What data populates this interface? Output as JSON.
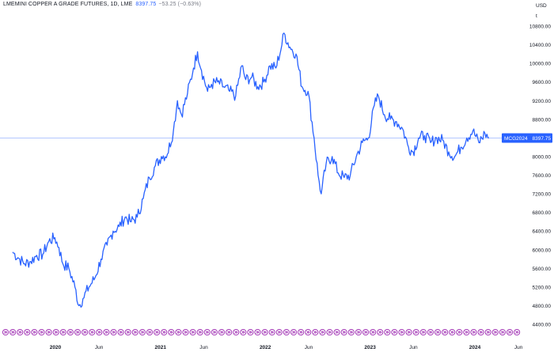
{
  "header": {
    "symbol_line": "LMEMINI COPPER A GRADE FUTURES, 1D, LME",
    "last_price": "8397.75",
    "change": "−53.25 (−0.63%)"
  },
  "axis": {
    "currency": "USD",
    "unit": "t"
  },
  "price_label": {
    "symbol": "MCG2024",
    "value": "8397.75"
  },
  "colors": {
    "line": "#2962ff",
    "label_bg": "#2962ff",
    "event_marker": "#9c27b0",
    "price_line": "#2962ff"
  },
  "chart_data": {
    "type": "line",
    "title": "LMEMINI COPPER A GRADE FUTURES, 1D, LME",
    "ylabel": "USD / t",
    "ylim": [
      4400,
      10800
    ],
    "y_ticks": [
      4400,
      4800,
      5200,
      5600,
      6000,
      6400,
      6800,
      7200,
      7600,
      8000,
      8400,
      8800,
      9200,
      9600,
      10000,
      10400,
      10800
    ],
    "y_tick_labels": [
      "4400.00",
      "4800.00",
      "5200.00",
      "5600.00",
      "6000.00",
      "6400.00",
      "6800.00",
      "7200.00",
      "7600.00",
      "8000.00",
      "8400.00",
      "8800.00",
      "9200.00",
      "9600.00",
      "10000.00",
      "10400.00",
      "10800.00"
    ],
    "x_ticks": [
      {
        "date": "2020-01-01",
        "label": "2020"
      },
      {
        "date": "2020-06-01",
        "label": "Jun"
      },
      {
        "date": "2021-01-01",
        "label": "2021"
      },
      {
        "date": "2021-06-01",
        "label": "Jun"
      },
      {
        "date": "2022-01-01",
        "label": "2022"
      },
      {
        "date": "2022-06-01",
        "label": "Jun"
      },
      {
        "date": "2023-01-01",
        "label": "2023"
      },
      {
        "date": "2023-06-01",
        "label": "Jun"
      },
      {
        "date": "2024-01-01",
        "label": "2024"
      },
      {
        "date": "2024-06-01",
        "label": "Jun"
      }
    ],
    "last_value": 8397.75,
    "series": [
      {
        "x": [
          "2019-08-05",
          "2019-08-26",
          "2019-09-16",
          "2019-10-07",
          "2019-10-28",
          "2019-11-18",
          "2019-12-09",
          "2019-12-30",
          "2020-01-13",
          "2020-01-27",
          "2020-02-17",
          "2020-03-09",
          "2020-03-23",
          "2020-04-06",
          "2020-04-27",
          "2020-05-18",
          "2020-06-08",
          "2020-06-29",
          "2020-07-20",
          "2020-08-10",
          "2020-08-31",
          "2020-09-21",
          "2020-10-12",
          "2020-11-02",
          "2020-11-23",
          "2020-12-14",
          "2021-01-04",
          "2021-01-25",
          "2021-02-15",
          "2021-03-01",
          "2021-03-15",
          "2021-04-05",
          "2021-04-26",
          "2021-05-10",
          "2021-05-24",
          "2021-06-14",
          "2021-06-28",
          "2021-07-19",
          "2021-08-09",
          "2021-08-30",
          "2021-09-20",
          "2021-10-11",
          "2021-10-25",
          "2021-11-15",
          "2021-12-06",
          "2021-12-27",
          "2022-01-17",
          "2022-02-07",
          "2022-02-28",
          "2022-03-07",
          "2022-03-28",
          "2022-04-18",
          "2022-05-09",
          "2022-05-30",
          "2022-06-20",
          "2022-07-04",
          "2022-07-15",
          "2022-08-01",
          "2022-08-22",
          "2022-09-12",
          "2022-10-03",
          "2022-10-24",
          "2022-11-14",
          "2022-12-05",
          "2022-12-26",
          "2023-01-16",
          "2023-01-30",
          "2023-02-20",
          "2023-03-13",
          "2023-04-03",
          "2023-04-24",
          "2023-05-15",
          "2023-05-31",
          "2023-06-19",
          "2023-07-10",
          "2023-07-31",
          "2023-08-21",
          "2023-09-11",
          "2023-10-02",
          "2023-10-23",
          "2023-11-13",
          "2023-12-04",
          "2023-12-25",
          "2024-01-15",
          "2024-02-05",
          "2024-02-19"
        ],
        "values": [
          5950,
          5820,
          5700,
          5750,
          5880,
          5900,
          6180,
          6260,
          6050,
          5700,
          5600,
          5200,
          4800,
          4950,
          5200,
          5400,
          5800,
          6100,
          6400,
          6500,
          6700,
          6600,
          6700,
          7100,
          7550,
          7800,
          8000,
          8050,
          8550,
          9200,
          8900,
          9350,
          9900,
          10250,
          9850,
          9400,
          9550,
          9600,
          9500,
          9400,
          9300,
          9950,
          9650,
          9700,
          9500,
          9600,
          9950,
          9900,
          10400,
          10650,
          10350,
          10200,
          9500,
          9400,
          8400,
          7600,
          7200,
          7850,
          8000,
          7650,
          7550,
          7600,
          8000,
          8300,
          8400,
          9100,
          9300,
          8900,
          8800,
          8750,
          8600,
          8200,
          8100,
          8400,
          8450,
          8300,
          8400,
          8350,
          8100,
          8000,
          8200,
          8400,
          8550,
          8300,
          8500,
          8398
        ]
      }
    ]
  }
}
